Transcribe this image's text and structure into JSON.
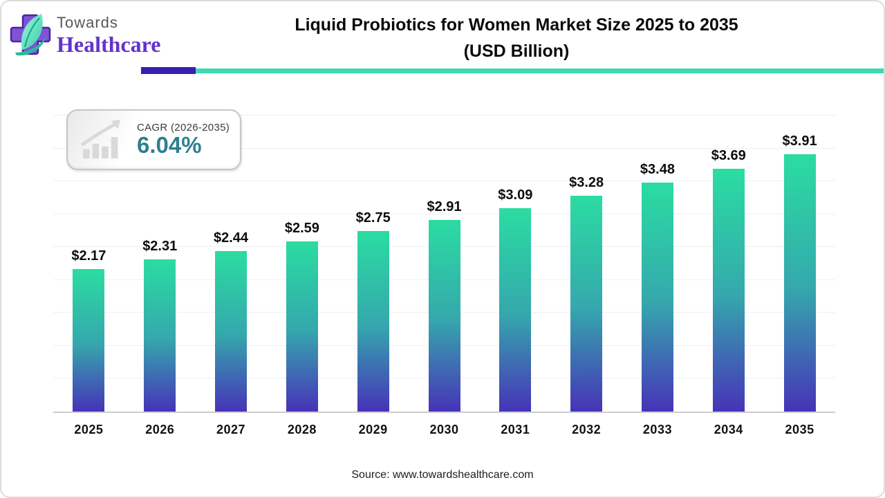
{
  "header": {
    "brand_top": "Towards",
    "brand_bottom": "Healthcare",
    "title_line1": "Liquid Probiotics for Women Market Size 2025 to 2035",
    "title_line2": "(USD Billion)"
  },
  "icons": {
    "logo": "medical-cross-with-leaf",
    "cagr_badge": "growth-bars-with-arrow"
  },
  "cagr_badge": {
    "label": "CAGR (2026-2035)",
    "value": "6.04%"
  },
  "chart_data": {
    "type": "bar",
    "title": "Liquid Probiotics for Women Market Size 2025 to 2035 (USD Billion)",
    "unit": "USD Billion",
    "categories": [
      "2025",
      "2026",
      "2027",
      "2028",
      "2029",
      "2030",
      "2031",
      "2032",
      "2033",
      "2034",
      "2035"
    ],
    "values": [
      2.17,
      2.31,
      2.44,
      2.59,
      2.75,
      2.91,
      3.09,
      3.28,
      3.48,
      3.69,
      3.91
    ],
    "value_labels": [
      "$2.17",
      "$2.31",
      "$2.44",
      "$2.59",
      "$2.75",
      "$2.91",
      "$3.09",
      "$3.28",
      "$3.48",
      "$3.69",
      "$3.91"
    ],
    "xlabel": "",
    "ylabel": "",
    "ylim": [
      0,
      4.66
    ],
    "gridline_step": 0.5,
    "grid": true,
    "legend": null,
    "colors": {
      "bar_top": "#2bdca2",
      "bar_mid": "#35a8ad",
      "bar_bottom": "#4733b8"
    }
  },
  "footer": {
    "source": "Source: www.towardshealthcare.com"
  },
  "colors": {
    "accent_purple": "#3a1fad",
    "accent_teal": "#3ed8b2",
    "brand_purple": "#6233cc",
    "cagr_teal": "#2d7f91"
  }
}
